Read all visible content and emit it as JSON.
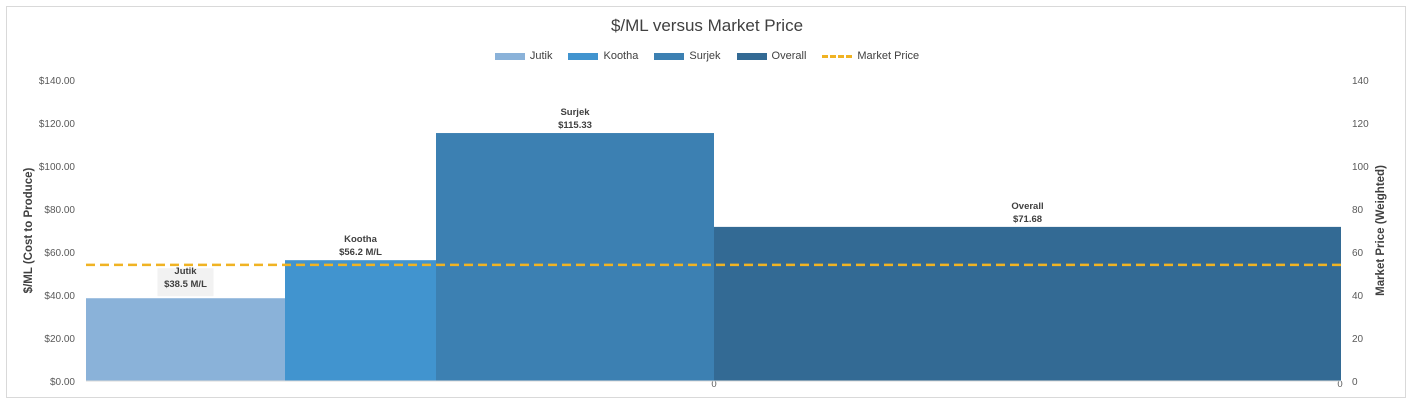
{
  "chart_data": {
    "type": "bar",
    "title": "$/ML versus Market Price",
    "ylabel": "$/ML (Cost to Produce)",
    "y2label": "Market Price (Weighted)",
    "ylim": [
      0,
      140
    ],
    "y2lim": [
      0,
      140
    ],
    "yticks": [
      "$0.00",
      "$20.00",
      "$40.00",
      "$60.00",
      "$80.00",
      "$100.00",
      "$120.00",
      "$140.00"
    ],
    "y2ticks": [
      "0",
      "20",
      "40",
      "60",
      "80",
      "100",
      "120",
      "140"
    ],
    "xticks": [
      "0",
      "0"
    ],
    "grid": false,
    "legend_position": "top",
    "series": [
      {
        "name": "Jutik",
        "value": 38.5,
        "label_name": "Jutik",
        "label_value": "$38.5 M/L",
        "color": "#8ab2d9"
      },
      {
        "name": "Kootha",
        "value": 56.2,
        "label_name": "Kootha",
        "label_value": "$56.2 M/L",
        "color": "#4194cf"
      },
      {
        "name": "Surjek",
        "value": 115.33,
        "label_name": "Surjek",
        "label_value": "$115.33",
        "color": "#3c80b2"
      },
      {
        "name": "Overall",
        "value": 71.68,
        "label_name": "Overall",
        "label_value": "$71.68",
        "color": "#336a94"
      }
    ],
    "market_price": {
      "name": "Market Price",
      "value": 54,
      "color": "#f0b323"
    }
  }
}
